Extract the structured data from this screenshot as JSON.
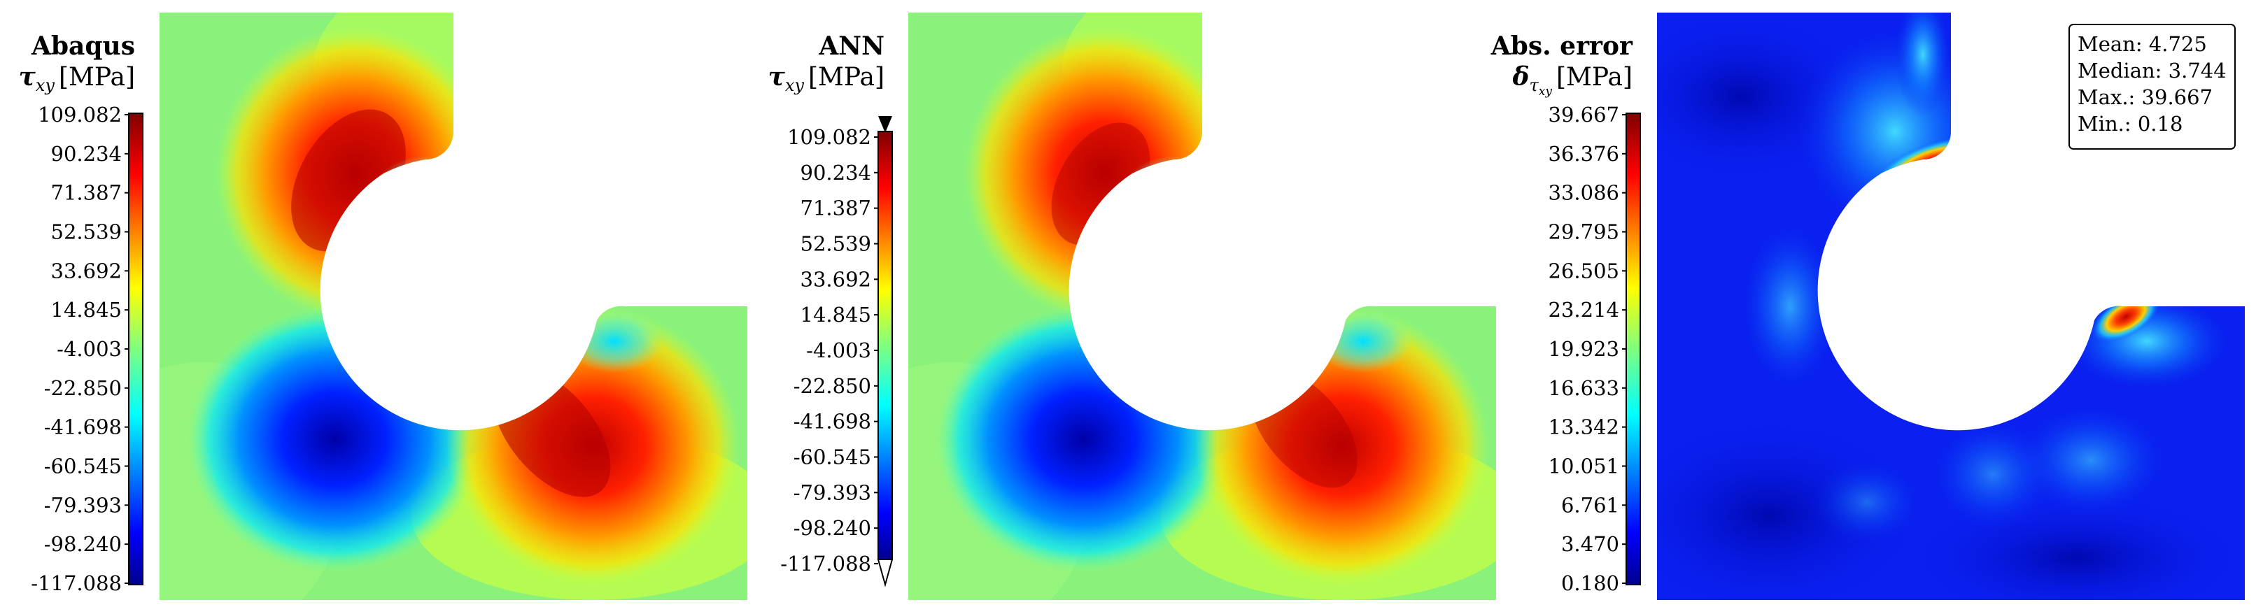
{
  "panels": [
    {
      "title": "Abaqus",
      "quantity": "τ",
      "quantity_sub": "xy",
      "unit": "[MPa]",
      "colorbar": {
        "type": "jet",
        "extend_arrows": false,
        "ticks": [
          "109.082",
          "90.234",
          "71.387",
          "52.539",
          "33.692",
          "14.845",
          "-4.003",
          "-22.850",
          "-41.698",
          "-60.545",
          "-79.393",
          "-98.240",
          "-117.088"
        ]
      }
    },
    {
      "title": "ANN",
      "quantity": "τ",
      "quantity_sub": "xy",
      "unit": "[MPa]",
      "colorbar": {
        "type": "jet",
        "extend_arrows": true,
        "ticks": [
          "109.082",
          "90.234",
          "71.387",
          "52.539",
          "33.692",
          "14.845",
          "-4.003",
          "-22.850",
          "-41.698",
          "-60.545",
          "-79.393",
          "-98.240",
          "-117.088"
        ]
      }
    },
    {
      "title": "Abs. error",
      "quantity": "δ",
      "quantity_sub": "τ",
      "quantity_subsub": "xy",
      "unit": "[MPa]",
      "colorbar": {
        "type": "jet",
        "extend_arrows": false,
        "ticks": [
          "39.667",
          "36.376",
          "33.086",
          "29.795",
          "26.505",
          "23.214",
          "19.923",
          "16.633",
          "13.342",
          "10.051",
          "6.761",
          "3.470",
          "0.180"
        ]
      },
      "stats": [
        "Mean: 4.725",
        "Median: 3.744",
        "Max.: 39.667",
        "Min.: 0.18"
      ]
    }
  ],
  "colors": {
    "jet_dark_blue": "#00008f",
    "jet_blue": "#0000ff",
    "jet_cyan": "#00ffff",
    "jet_green": "#7fff7f",
    "jet_yellow": "#ffff00",
    "jet_red": "#ff0000",
    "jet_dark_red": "#800000",
    "field_background": "#8af27a",
    "error_background": "#0a1ff0"
  }
}
